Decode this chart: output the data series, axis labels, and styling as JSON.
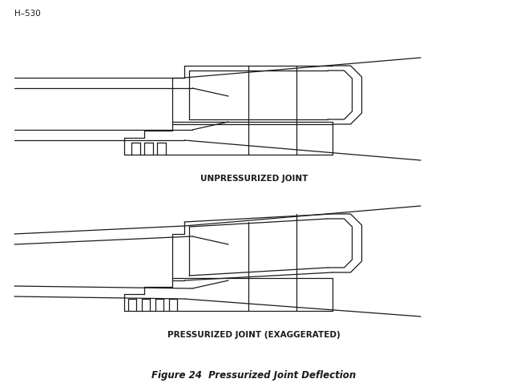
{
  "title": "Figure 24  Pressurized Joint Deflection",
  "label1": "UNPRESSURIZED JOINT",
  "label2": "PRESSURIZED JOINT (EXAGGERATED)",
  "header": "H–530",
  "bg_color": "#ffffff",
  "line_color": "#1a1a1a",
  "title_fontsize": 8.5,
  "label_fontsize": 7.5,
  "header_fontsize": 7.5,
  "lw": 0.9
}
